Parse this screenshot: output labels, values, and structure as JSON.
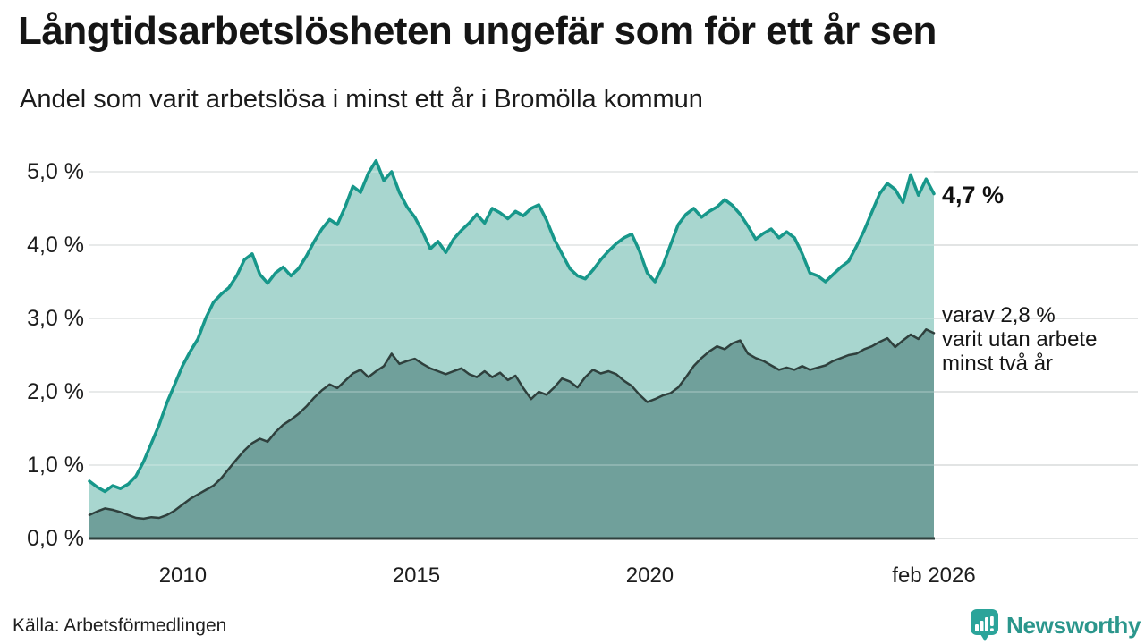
{
  "header": {
    "title": "Långtidsarbetslösheten ungefär som för ett år sen",
    "subtitle": "Andel som varit arbetslösa i minst ett år i Bromölla kommun"
  },
  "annotations": {
    "end_value": "4,7 %",
    "secondary": [
      "varav 2,8 %",
      "varit utan arbete",
      "minst två år"
    ]
  },
  "footer": {
    "source": "Källa: Arbetsförmedlingen",
    "brand": "Newsworthy"
  },
  "chart_data": {
    "type": "area",
    "title": "Långtidsarbetslösheten ungefär som för ett år sen",
    "subtitle": "Andel som varit arbetslösa i minst ett år i Bromölla kommun",
    "unit": "%",
    "legend_position": "right-annotations",
    "grid": true,
    "x_axis": {
      "min": 2008.0,
      "max": 2026.083,
      "ticks": [
        {
          "label": "2010",
          "t": 2010
        },
        {
          "label": "2015",
          "t": 2015
        },
        {
          "label": "2020",
          "t": 2020
        },
        {
          "label": "feb 2026",
          "t": 2026.083
        }
      ]
    },
    "y_axis": {
      "values": [
        0,
        1,
        2,
        3,
        4,
        5
      ],
      "labels": [
        "0,0 %",
        "1,0 %",
        "2,0 %",
        "3,0 %",
        "4,0 %",
        "5,0 %"
      ],
      "ylim": [
        0,
        5.3
      ]
    },
    "colors": {
      "grid": "#d8dbdc",
      "axis": "#2f403d",
      "accent_teal": "#17978a",
      "brand_teal": "#2b968c"
    },
    "series": [
      {
        "name": "Andel arbetslösa minst ett år",
        "end_label": "4,7 %",
        "stroke": "#17978a",
        "fill": "#a8d6cf",
        "values": [
          0.78,
          0.7,
          0.64,
          0.72,
          0.68,
          0.74,
          0.85,
          1.05,
          1.3,
          1.55,
          1.85,
          2.1,
          2.35,
          2.55,
          2.72,
          3.0,
          3.22,
          3.33,
          3.42,
          3.58,
          3.8,
          3.88,
          3.6,
          3.48,
          3.62,
          3.7,
          3.58,
          3.68,
          3.85,
          4.05,
          4.22,
          4.35,
          4.28,
          4.52,
          4.8,
          4.72,
          4.98,
          5.15,
          4.88,
          5.0,
          4.72,
          4.52,
          4.38,
          4.18,
          3.95,
          4.05,
          3.9,
          4.08,
          4.2,
          4.3,
          4.42,
          4.3,
          4.5,
          4.44,
          4.36,
          4.46,
          4.4,
          4.5,
          4.55,
          4.34,
          4.08,
          3.88,
          3.68,
          3.58,
          3.54,
          3.66,
          3.8,
          3.92,
          4.02,
          4.1,
          4.15,
          3.92,
          3.62,
          3.5,
          3.72,
          4.0,
          4.28,
          4.42,
          4.5,
          4.38,
          4.46,
          4.52,
          4.62,
          4.54,
          4.42,
          4.26,
          4.08,
          4.16,
          4.22,
          4.1,
          4.18,
          4.1,
          3.88,
          3.62,
          3.58,
          3.5,
          3.6,
          3.7,
          3.78,
          3.98,
          4.2,
          4.45,
          4.7,
          4.84,
          4.76,
          4.58,
          4.96,
          4.68,
          4.9,
          4.7
        ]
      },
      {
        "name": "Andel arbetslösa minst två år",
        "end_label": "2,8 %",
        "stroke": "#2f403d",
        "fill": "#70a09b",
        "values": [
          0.32,
          0.37,
          0.41,
          0.39,
          0.36,
          0.32,
          0.28,
          0.27,
          0.29,
          0.28,
          0.32,
          0.38,
          0.46,
          0.54,
          0.6,
          0.66,
          0.72,
          0.82,
          0.95,
          1.08,
          1.2,
          1.3,
          1.36,
          1.32,
          1.45,
          1.55,
          1.62,
          1.7,
          1.8,
          1.92,
          2.02,
          2.1,
          2.05,
          2.15,
          2.25,
          2.3,
          2.2,
          2.28,
          2.35,
          2.52,
          2.38,
          2.42,
          2.45,
          2.38,
          2.32,
          2.28,
          2.24,
          2.28,
          2.32,
          2.24,
          2.2,
          2.28,
          2.2,
          2.26,
          2.16,
          2.22,
          2.05,
          1.9,
          2.0,
          1.96,
          2.06,
          2.18,
          2.14,
          2.06,
          2.2,
          2.3,
          2.25,
          2.28,
          2.24,
          2.15,
          2.08,
          1.96,
          1.86,
          1.9,
          1.95,
          1.98,
          2.06,
          2.2,
          2.35,
          2.46,
          2.55,
          2.62,
          2.58,
          2.66,
          2.7,
          2.52,
          2.46,
          2.42,
          2.36,
          2.3,
          2.33,
          2.3,
          2.35,
          2.3,
          2.33,
          2.36,
          2.42,
          2.46,
          2.5,
          2.52,
          2.58,
          2.62,
          2.68,
          2.73,
          2.61,
          2.7,
          2.78,
          2.72,
          2.85,
          2.8
        ]
      }
    ]
  }
}
